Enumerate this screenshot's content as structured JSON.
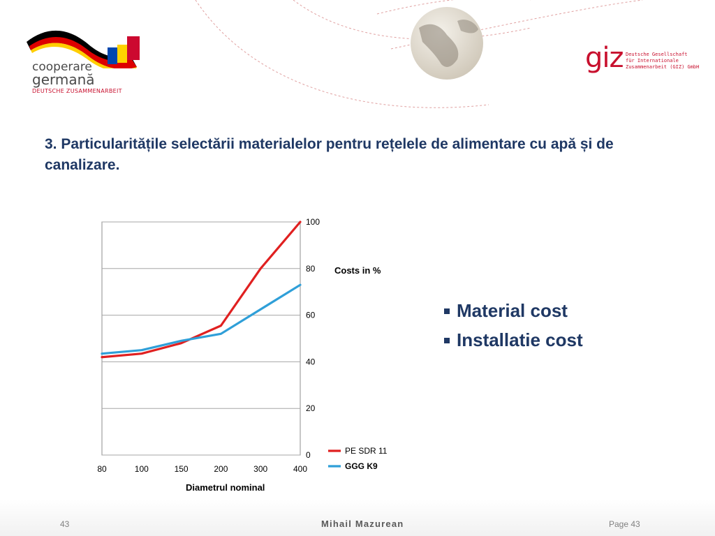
{
  "header": {
    "left_logo": {
      "line1": "cooperare",
      "line2": "germană",
      "line3": "DEUTSCHE ZUSAMMENARBEIT"
    },
    "right_logo": {
      "mark": "giz",
      "lines": [
        "Deutsche Gesellschaft",
        "für Internationale",
        "Zusammenarbeit (GIZ) GmbH"
      ]
    },
    "globe_icon": "globe-icon"
  },
  "slide": {
    "title": "3. Particularitățile selectării materialelor pentru rețelele de alimentare cu apă și de canalizare."
  },
  "bullets": [
    {
      "label": "Material cost"
    },
    {
      "label": "Installatie cost"
    }
  ],
  "chart_data": {
    "type": "line",
    "categories": [
      "80",
      "100",
      "150",
      "200",
      "300",
      "400"
    ],
    "series": [
      {
        "name": "PE SDR 11",
        "color": "#e02020",
        "values": [
          42,
          43.5,
          48,
          55.5,
          80,
          100
        ]
      },
      {
        "name": "GGG K9",
        "color": "#2f9fd8",
        "values": [
          43.5,
          45,
          49,
          52,
          62.5,
          73
        ]
      }
    ],
    "xlabel": "Diametrul nominal",
    "ylabel": "Costs in %",
    "yticks": [
      0,
      20,
      40,
      60,
      80,
      100
    ],
    "ylim": [
      0,
      100
    ],
    "grid": true,
    "legend": "bottom-right"
  },
  "footer": {
    "slide_number": "43",
    "author": "Mihail Mazurean",
    "page_label": "Page 43"
  }
}
